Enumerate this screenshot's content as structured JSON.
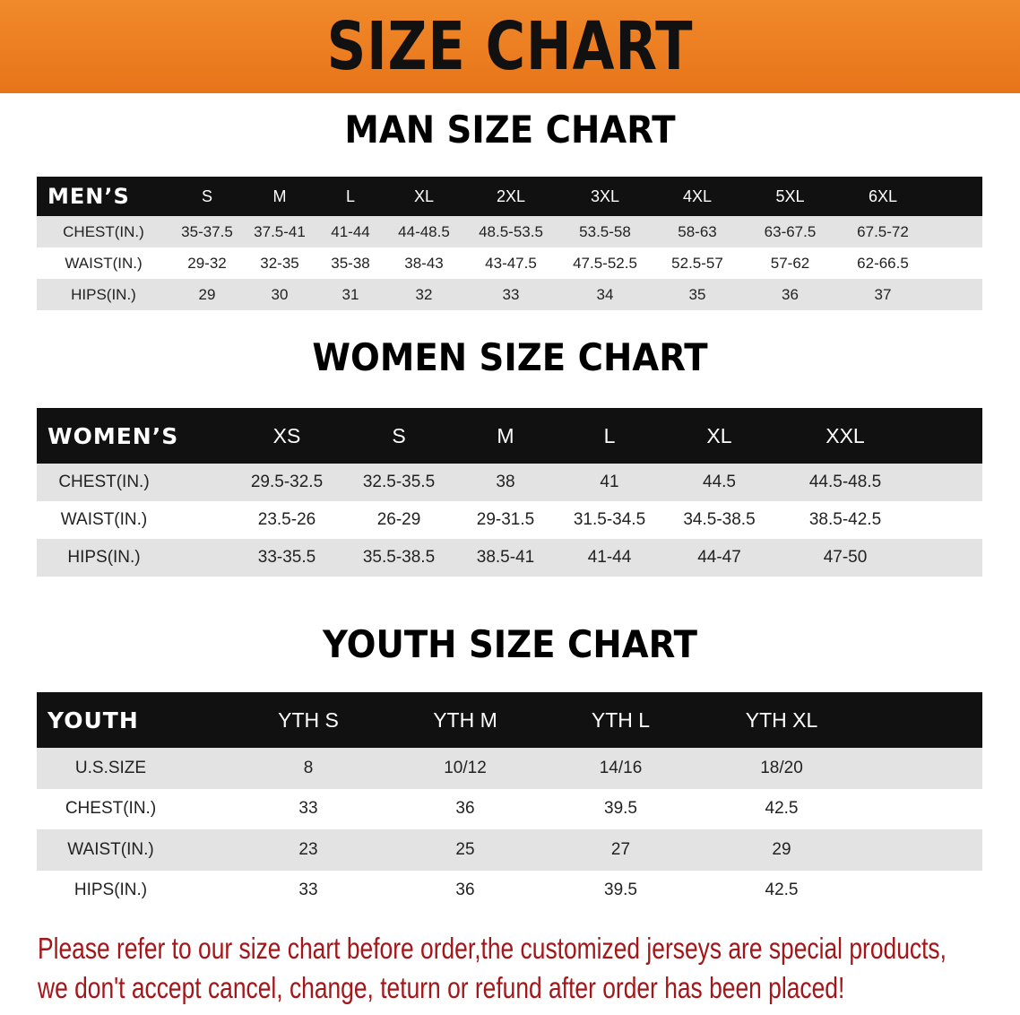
{
  "title": "SIZE CHART",
  "colors": {
    "banner": "#eb7d20",
    "header_row": "#111111",
    "note_text": "#a3161a"
  },
  "men": {
    "title": "MAN SIZE CHART",
    "header_label": "MEN’S",
    "sizes": [
      "S",
      "M",
      "L",
      "XL",
      "2XL",
      "3XL",
      "4XL",
      "5XL",
      "6XL"
    ],
    "rows": [
      {
        "label": "CHEST(IN.)",
        "values": [
          "35-37.5",
          "37.5-41",
          "41-44",
          "44-48.5",
          "48.5-53.5",
          "53.5-58",
          "58-63",
          "63-67.5",
          "67.5-72"
        ]
      },
      {
        "label": "WAIST(IN.)",
        "values": [
          "29-32",
          "32-35",
          "35-38",
          "38-43",
          "43-47.5",
          "47.5-52.5",
          "52.5-57",
          "57-62",
          "62-66.5"
        ]
      },
      {
        "label": "HIPS(IN.)",
        "values": [
          "29",
          "30",
          "31",
          "32",
          "33",
          "34",
          "35",
          "36",
          "37"
        ]
      }
    ]
  },
  "women": {
    "title": "WOMEN SIZE CHART",
    "header_label": "WOMEN’S",
    "sizes": [
      "XS",
      "S",
      "M",
      "L",
      "XL",
      "XXL"
    ],
    "rows": [
      {
        "label": "CHEST(IN.)",
        "values": [
          "29.5-32.5",
          "32.5-35.5",
          "38",
          "41",
          "44.5",
          "44.5-48.5"
        ]
      },
      {
        "label": "WAIST(IN.)",
        "values": [
          "23.5-26",
          "26-29",
          "29-31.5",
          "31.5-34.5",
          "34.5-38.5",
          "38.5-42.5"
        ]
      },
      {
        "label": "HIPS(IN.)",
        "values": [
          "33-35.5",
          "35.5-38.5",
          "38.5-41",
          "41-44",
          "44-47",
          "47-50"
        ]
      }
    ]
  },
  "youth": {
    "title": "YOUTH SIZE CHART",
    "header_label": "YOUTH",
    "sizes": [
      "YTH S",
      "YTH M",
      "YTH L",
      "YTH XL"
    ],
    "rows": [
      {
        "label": "U.S.SIZE",
        "values": [
          "8",
          "10/12",
          "14/16",
          "18/20"
        ]
      },
      {
        "label": "CHEST(IN.)",
        "values": [
          "33",
          "36",
          "39.5",
          "42.5"
        ]
      },
      {
        "label": "WAIST(IN.)",
        "values": [
          "23",
          "25",
          "27",
          "29"
        ]
      },
      {
        "label": "HIPS(IN.)",
        "values": [
          "33",
          "36",
          "39.5",
          "42.5"
        ]
      }
    ]
  },
  "note": {
    "line1": "Please refer to our size chart before order,the customized jerseys are special products,",
    "line2": "we don't accept cancel, change, teturn or refund after order has been placed!"
  }
}
